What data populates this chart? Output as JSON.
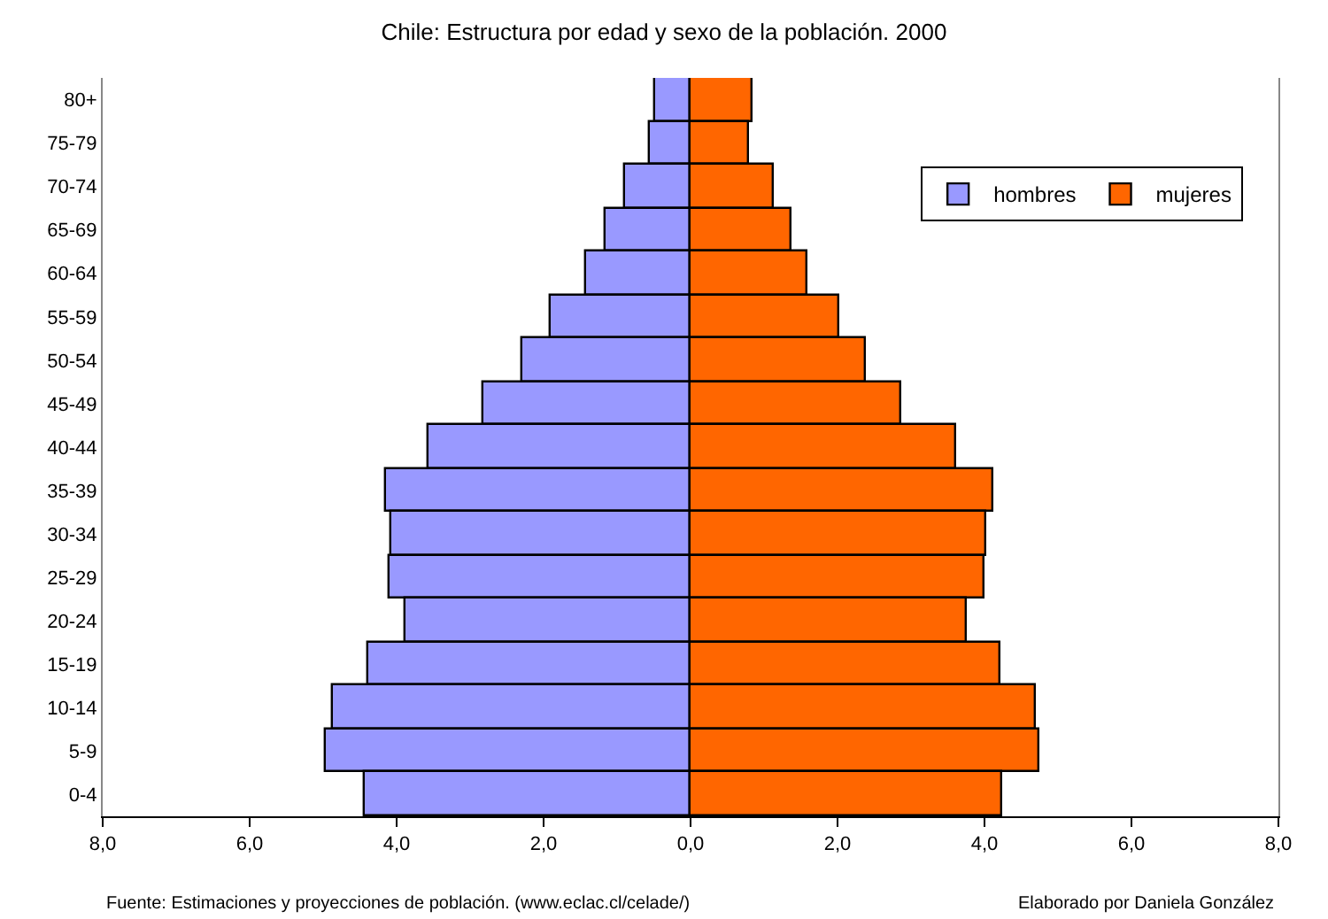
{
  "chart_data": {
    "type": "bar",
    "orientation": "horizontal",
    "stacked": true,
    "title": "Chile: Estructura por edad y sexo de la población. 2000",
    "categories": [
      "80+",
      "75-79",
      "70-74",
      "65-69",
      "60-64",
      "55-59",
      "50-54",
      "45-49",
      "40-44",
      "35-39",
      "30-34",
      "25-29",
      "20-24",
      "15-19",
      "10-14",
      "5-9",
      "0-4"
    ],
    "series": [
      {
        "name": "hombres",
        "color": "#9999ff",
        "values": [
          -0.48,
          -0.55,
          -0.88,
          -1.15,
          -1.43,
          -1.91,
          -2.29,
          -2.83,
          -3.57,
          -4.14,
          -4.08,
          -4.1,
          -3.88,
          -4.39,
          -4.87,
          -4.96,
          -4.44
        ]
      },
      {
        "name": "mujeres",
        "color": "#ff6600",
        "values": [
          0.84,
          0.79,
          1.13,
          1.38,
          1.6,
          2.03,
          2.39,
          2.87,
          3.61,
          4.12,
          4.02,
          4.0,
          3.77,
          4.22,
          4.69,
          4.74,
          4.23
        ]
      }
    ],
    "xlim": [
      -8,
      8
    ],
    "xticks": [
      {
        "value": -8,
        "label": "8,0"
      },
      {
        "value": -6,
        "label": "6,0"
      },
      {
        "value": -4,
        "label": "4,0"
      },
      {
        "value": -2,
        "label": "2,0"
      },
      {
        "value": 0,
        "label": "0,0"
      },
      {
        "value": 2,
        "label": "2,0"
      },
      {
        "value": 4,
        "label": "4,0"
      },
      {
        "value": 6,
        "label": "6,0"
      },
      {
        "value": 8,
        "label": "8,0"
      }
    ],
    "legend": "top right",
    "annotations": [
      "Fuente: Estimaciones y proyecciones de población. (www.eclac.cl/celade/)",
      "Elaborado por Daniela González"
    ]
  }
}
